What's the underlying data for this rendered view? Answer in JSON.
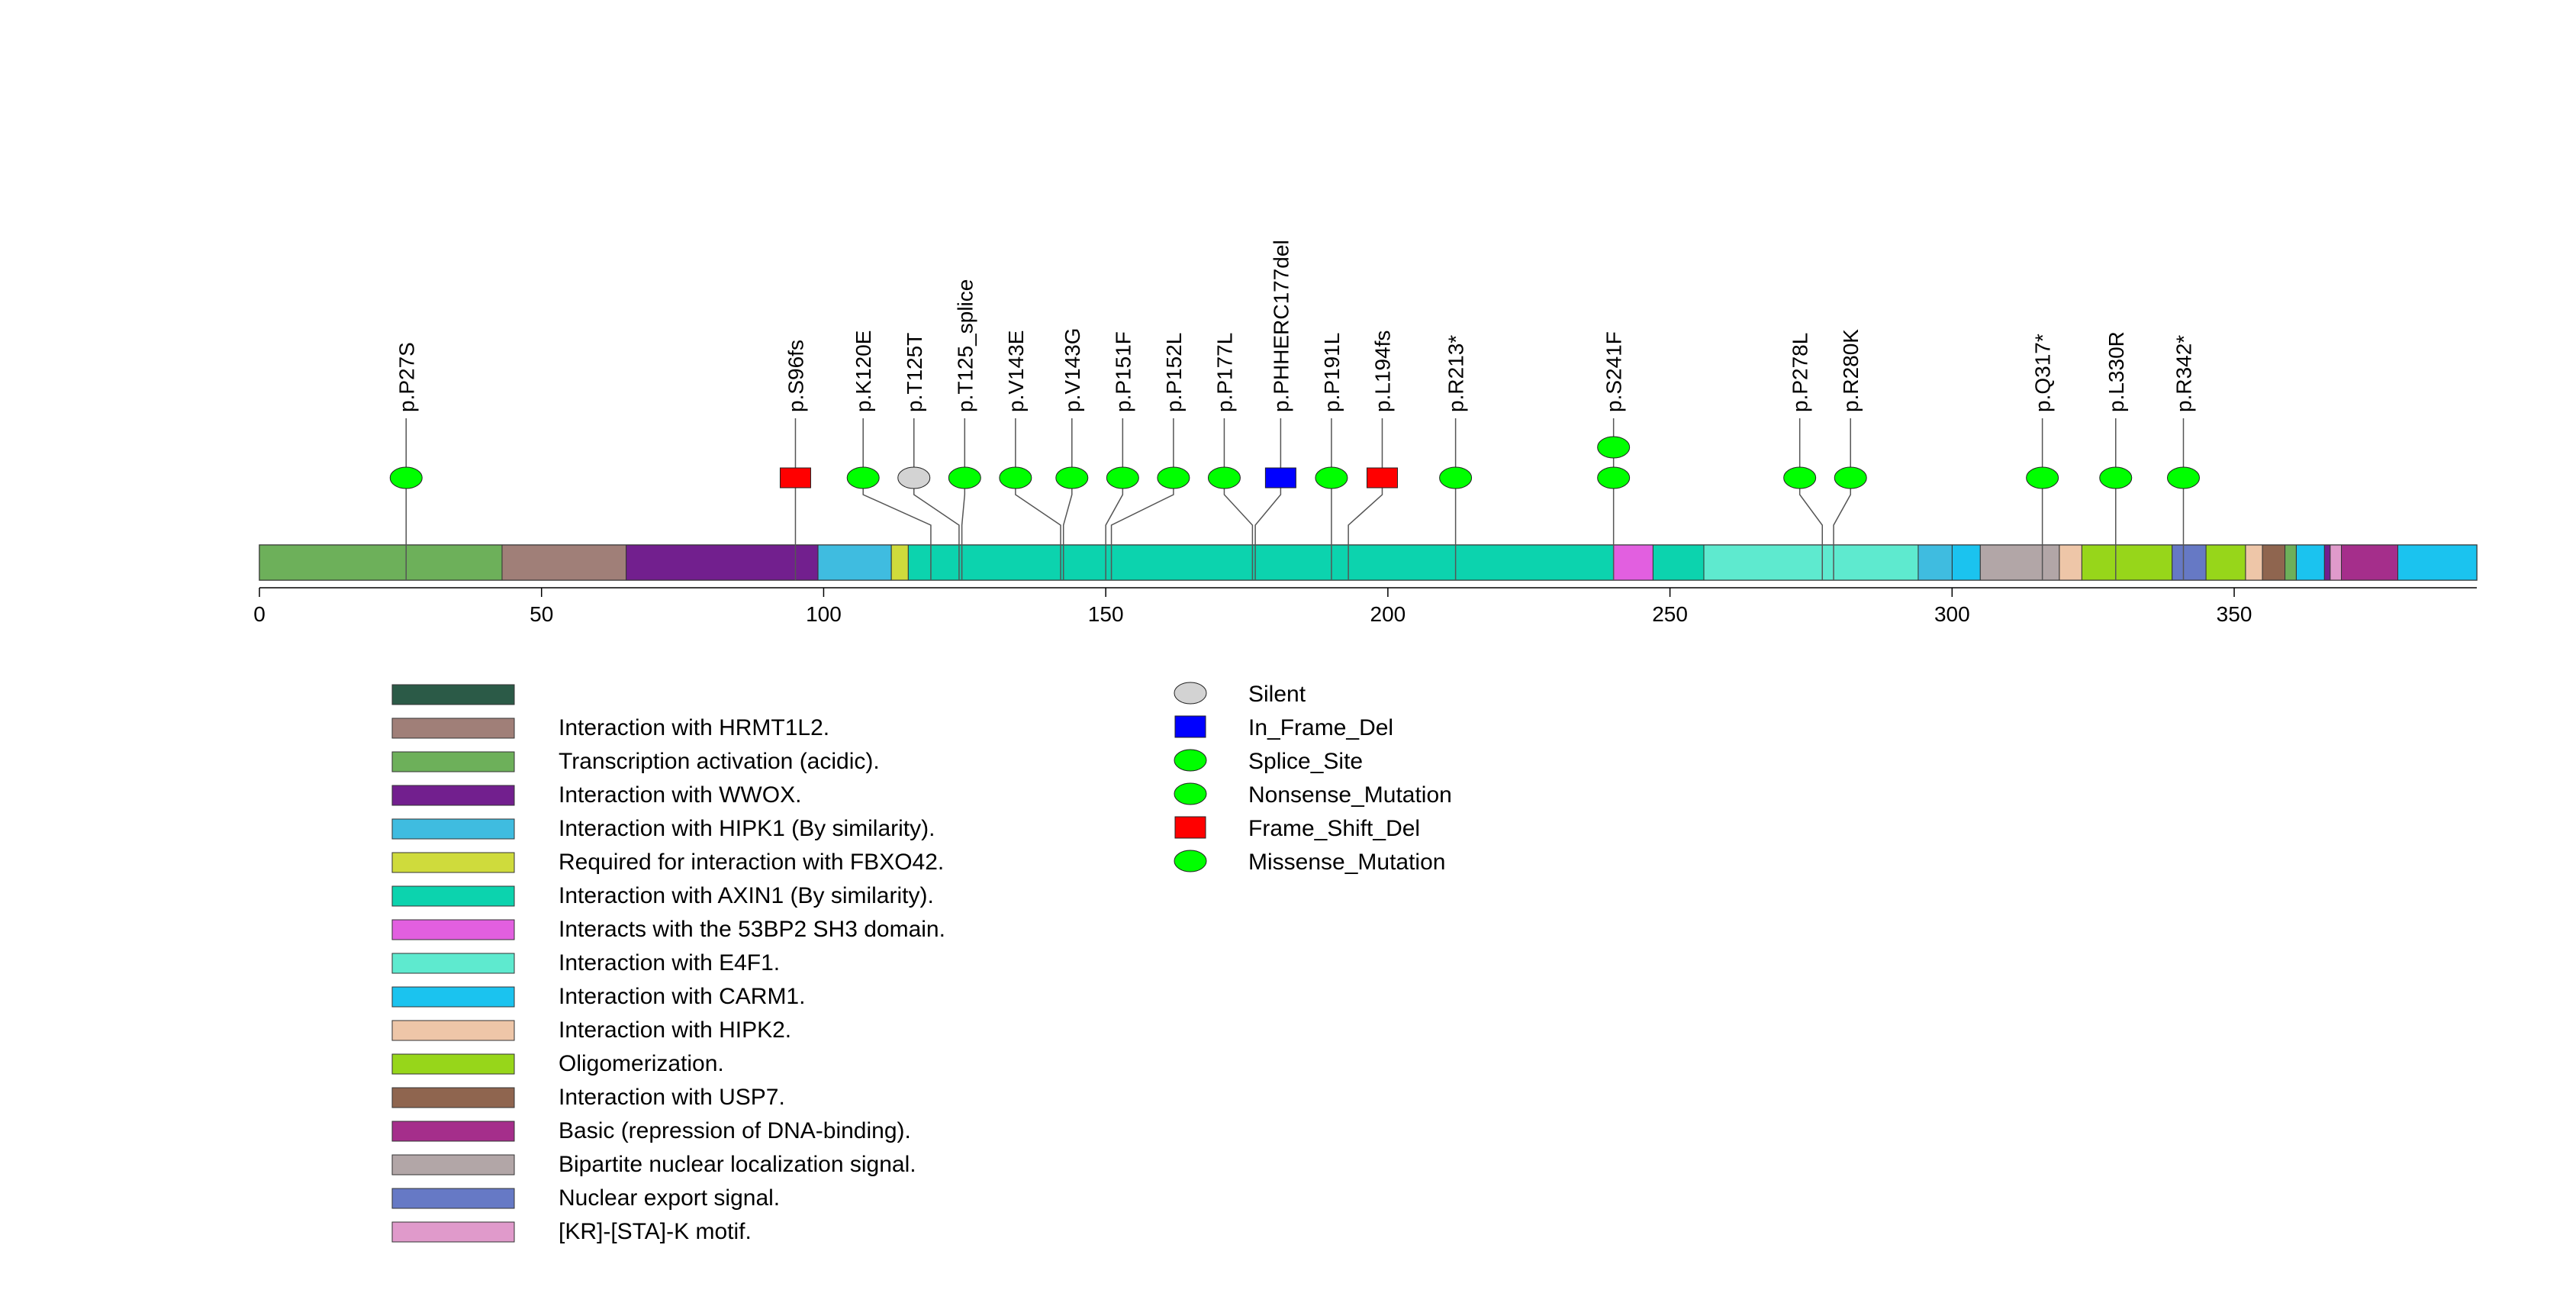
{
  "chart_data": {
    "type": "lollipop",
    "title": "",
    "xlabel": "",
    "ylabel": "",
    "xlim": [
      0,
      393
    ],
    "x_ticks": [
      0,
      50,
      100,
      150,
      200,
      250,
      300,
      350
    ],
    "domains": [
      {
        "label": "Interaction with HRMT1L2.",
        "color": "#A07F78",
        "segments": [
          [
            43,
            65
          ]
        ]
      },
      {
        "label": "Transcription activation (acidic).",
        "color": "#6DB05A",
        "segments": [
          [
            0,
            43
          ]
        ]
      },
      {
        "label": "Interaction with WWOX.",
        "color": "#721F8E",
        "segments": [
          [
            65,
            99
          ]
        ]
      },
      {
        "label": "Interaction with HIPK1 (By similarity).",
        "color": "#3FBCE0",
        "segments": [
          [
            99,
            112
          ]
        ]
      },
      {
        "label": "Required for interaction with FBXO42.",
        "color": "#CFDB3C",
        "segments": [
          [
            112,
            115
          ]
        ]
      },
      {
        "label": "Interaction with AXIN1 (By similarity).",
        "color": "#0CD3AE",
        "segments": [
          [
            115,
            240
          ]
        ]
      },
      {
        "label": "Interacts with the 53BP2 SH3 domain.",
        "color": "#E25FE0",
        "segments": [
          [
            240,
            247
          ]
        ]
      },
      {
        "label": "Interaction with E4F1.",
        "color": "#5EEACF",
        "segments": [
          [
            256,
            294
          ]
        ]
      },
      {
        "label": "Interaction with CARM1.",
        "color": "#1BC3EF",
        "segments": [
          [
            300,
            305
          ],
          [
            361,
            366
          ],
          [
            379,
            393
          ]
        ]
      },
      {
        "label": "Interaction with HIPK2.",
        "color": "#EEC6A8",
        "segments": [
          [
            319,
            323
          ],
          [
            352,
            355
          ]
        ]
      },
      {
        "label": "Oligomerization.",
        "color": "#97D61A",
        "segments": [
          [
            323,
            339
          ],
          [
            345,
            352
          ]
        ]
      },
      {
        "label": "Interaction with USP7.",
        "color": "#8F654F",
        "segments": [
          [
            355,
            359
          ]
        ]
      },
      {
        "label": "Basic (repression of DNA-binding).",
        "color": "#A52E8B",
        "segments": [
          [
            369,
            379
          ]
        ]
      },
      {
        "label": "Bipartite nuclear localization signal.",
        "color": "#B2A6A7",
        "segments": [
          [
            305,
            319
          ]
        ]
      },
      {
        "label": "Nuclear export signal.",
        "color": "#6679C5",
        "segments": [
          [
            339,
            345
          ]
        ]
      },
      {
        "label": "[KR]-[STA]-K motif.",
        "color": "#E09ACB",
        "segments": [
          [
            367,
            369
          ]
        ]
      }
    ],
    "legend_extra_domain": {
      "label": "",
      "color": "#2B5A47"
    },
    "extra_segments": [
      {
        "color": "#3FBCE0",
        "range": [
          294,
          300
        ]
      },
      {
        "color": "#0CD3AE",
        "range": [
          247,
          256
        ]
      },
      {
        "color": "#721F8E",
        "range": [
          366,
          367
        ]
      },
      {
        "color": "#6DB05A",
        "range": [
          359,
          361
        ]
      }
    ],
    "mutations": [
      {
        "label": "p.P27S",
        "pos": 26,
        "label_pos": 26,
        "type": "Missense_Mutation",
        "count": 1
      },
      {
        "label": "p.S96fs",
        "pos": 95,
        "label_pos": 95,
        "type": "Frame_Shift_Del",
        "count": 1
      },
      {
        "label": "p.K120E",
        "pos": 119,
        "label_pos": 107,
        "type": "Missense_Mutation",
        "count": 1
      },
      {
        "label": "p.T125T",
        "pos": 124,
        "label_pos": 116,
        "type": "Silent",
        "count": 1
      },
      {
        "label": "p.T125_splice",
        "pos": 124.5,
        "label_pos": 125,
        "type": "Splice_Site",
        "count": 1
      },
      {
        "label": "p.V143E",
        "pos": 142,
        "label_pos": 134,
        "type": "Missense_Mutation",
        "count": 1
      },
      {
        "label": "p.V143G",
        "pos": 142.5,
        "label_pos": 144,
        "type": "Missense_Mutation",
        "count": 1
      },
      {
        "label": "p.P151F",
        "pos": 150,
        "label_pos": 153,
        "type": "Missense_Mutation",
        "count": 1
      },
      {
        "label": "p.P152L",
        "pos": 151,
        "label_pos": 162,
        "type": "Missense_Mutation",
        "count": 1
      },
      {
        "label": "p.P177L",
        "pos": 176,
        "label_pos": 171,
        "type": "Missense_Mutation",
        "count": 1
      },
      {
        "label": "p.PHHERC177del",
        "pos": 176.5,
        "label_pos": 181,
        "type": "In_Frame_Del",
        "count": 1
      },
      {
        "label": "p.P191L",
        "pos": 190,
        "label_pos": 190,
        "type": "Missense_Mutation",
        "count": 1
      },
      {
        "label": "p.L194fs",
        "pos": 193,
        "label_pos": 199,
        "type": "Frame_Shift_Del",
        "count": 1
      },
      {
        "label": "p.R213*",
        "pos": 212,
        "label_pos": 212,
        "type": "Nonsense_Mutation",
        "count": 1
      },
      {
        "label": "p.S241F",
        "pos": 240,
        "label_pos": 240,
        "type": "Missense_Mutation",
        "count": 2
      },
      {
        "label": "p.P278L",
        "pos": 277,
        "label_pos": 273,
        "type": "Missense_Mutation",
        "count": 1
      },
      {
        "label": "p.R280K",
        "pos": 279,
        "label_pos": 282,
        "type": "Missense_Mutation",
        "count": 1
      },
      {
        "label": "p.Q317*",
        "pos": 316,
        "label_pos": 316,
        "type": "Nonsense_Mutation",
        "count": 1
      },
      {
        "label": "p.L330R",
        "pos": 329,
        "label_pos": 329,
        "type": "Missense_Mutation",
        "count": 1
      },
      {
        "label": "p.R342*",
        "pos": 341,
        "label_pos": 341,
        "type": "Nonsense_Mutation",
        "count": 1
      }
    ],
    "mutation_legend": [
      {
        "label": "Silent",
        "shape": "ellipse",
        "color": "#D3D3D3"
      },
      {
        "label": "In_Frame_Del",
        "shape": "rect",
        "color": "#0000FF"
      },
      {
        "label": "Splice_Site",
        "shape": "ellipse",
        "color": "#00FF00"
      },
      {
        "label": "Nonsense_Mutation",
        "shape": "ellipse",
        "color": "#00FF00"
      },
      {
        "label": "Frame_Shift_Del",
        "shape": "rect",
        "color": "#FF0000"
      },
      {
        "label": "Missense_Mutation",
        "shape": "ellipse",
        "color": "#00FF00"
      }
    ]
  }
}
